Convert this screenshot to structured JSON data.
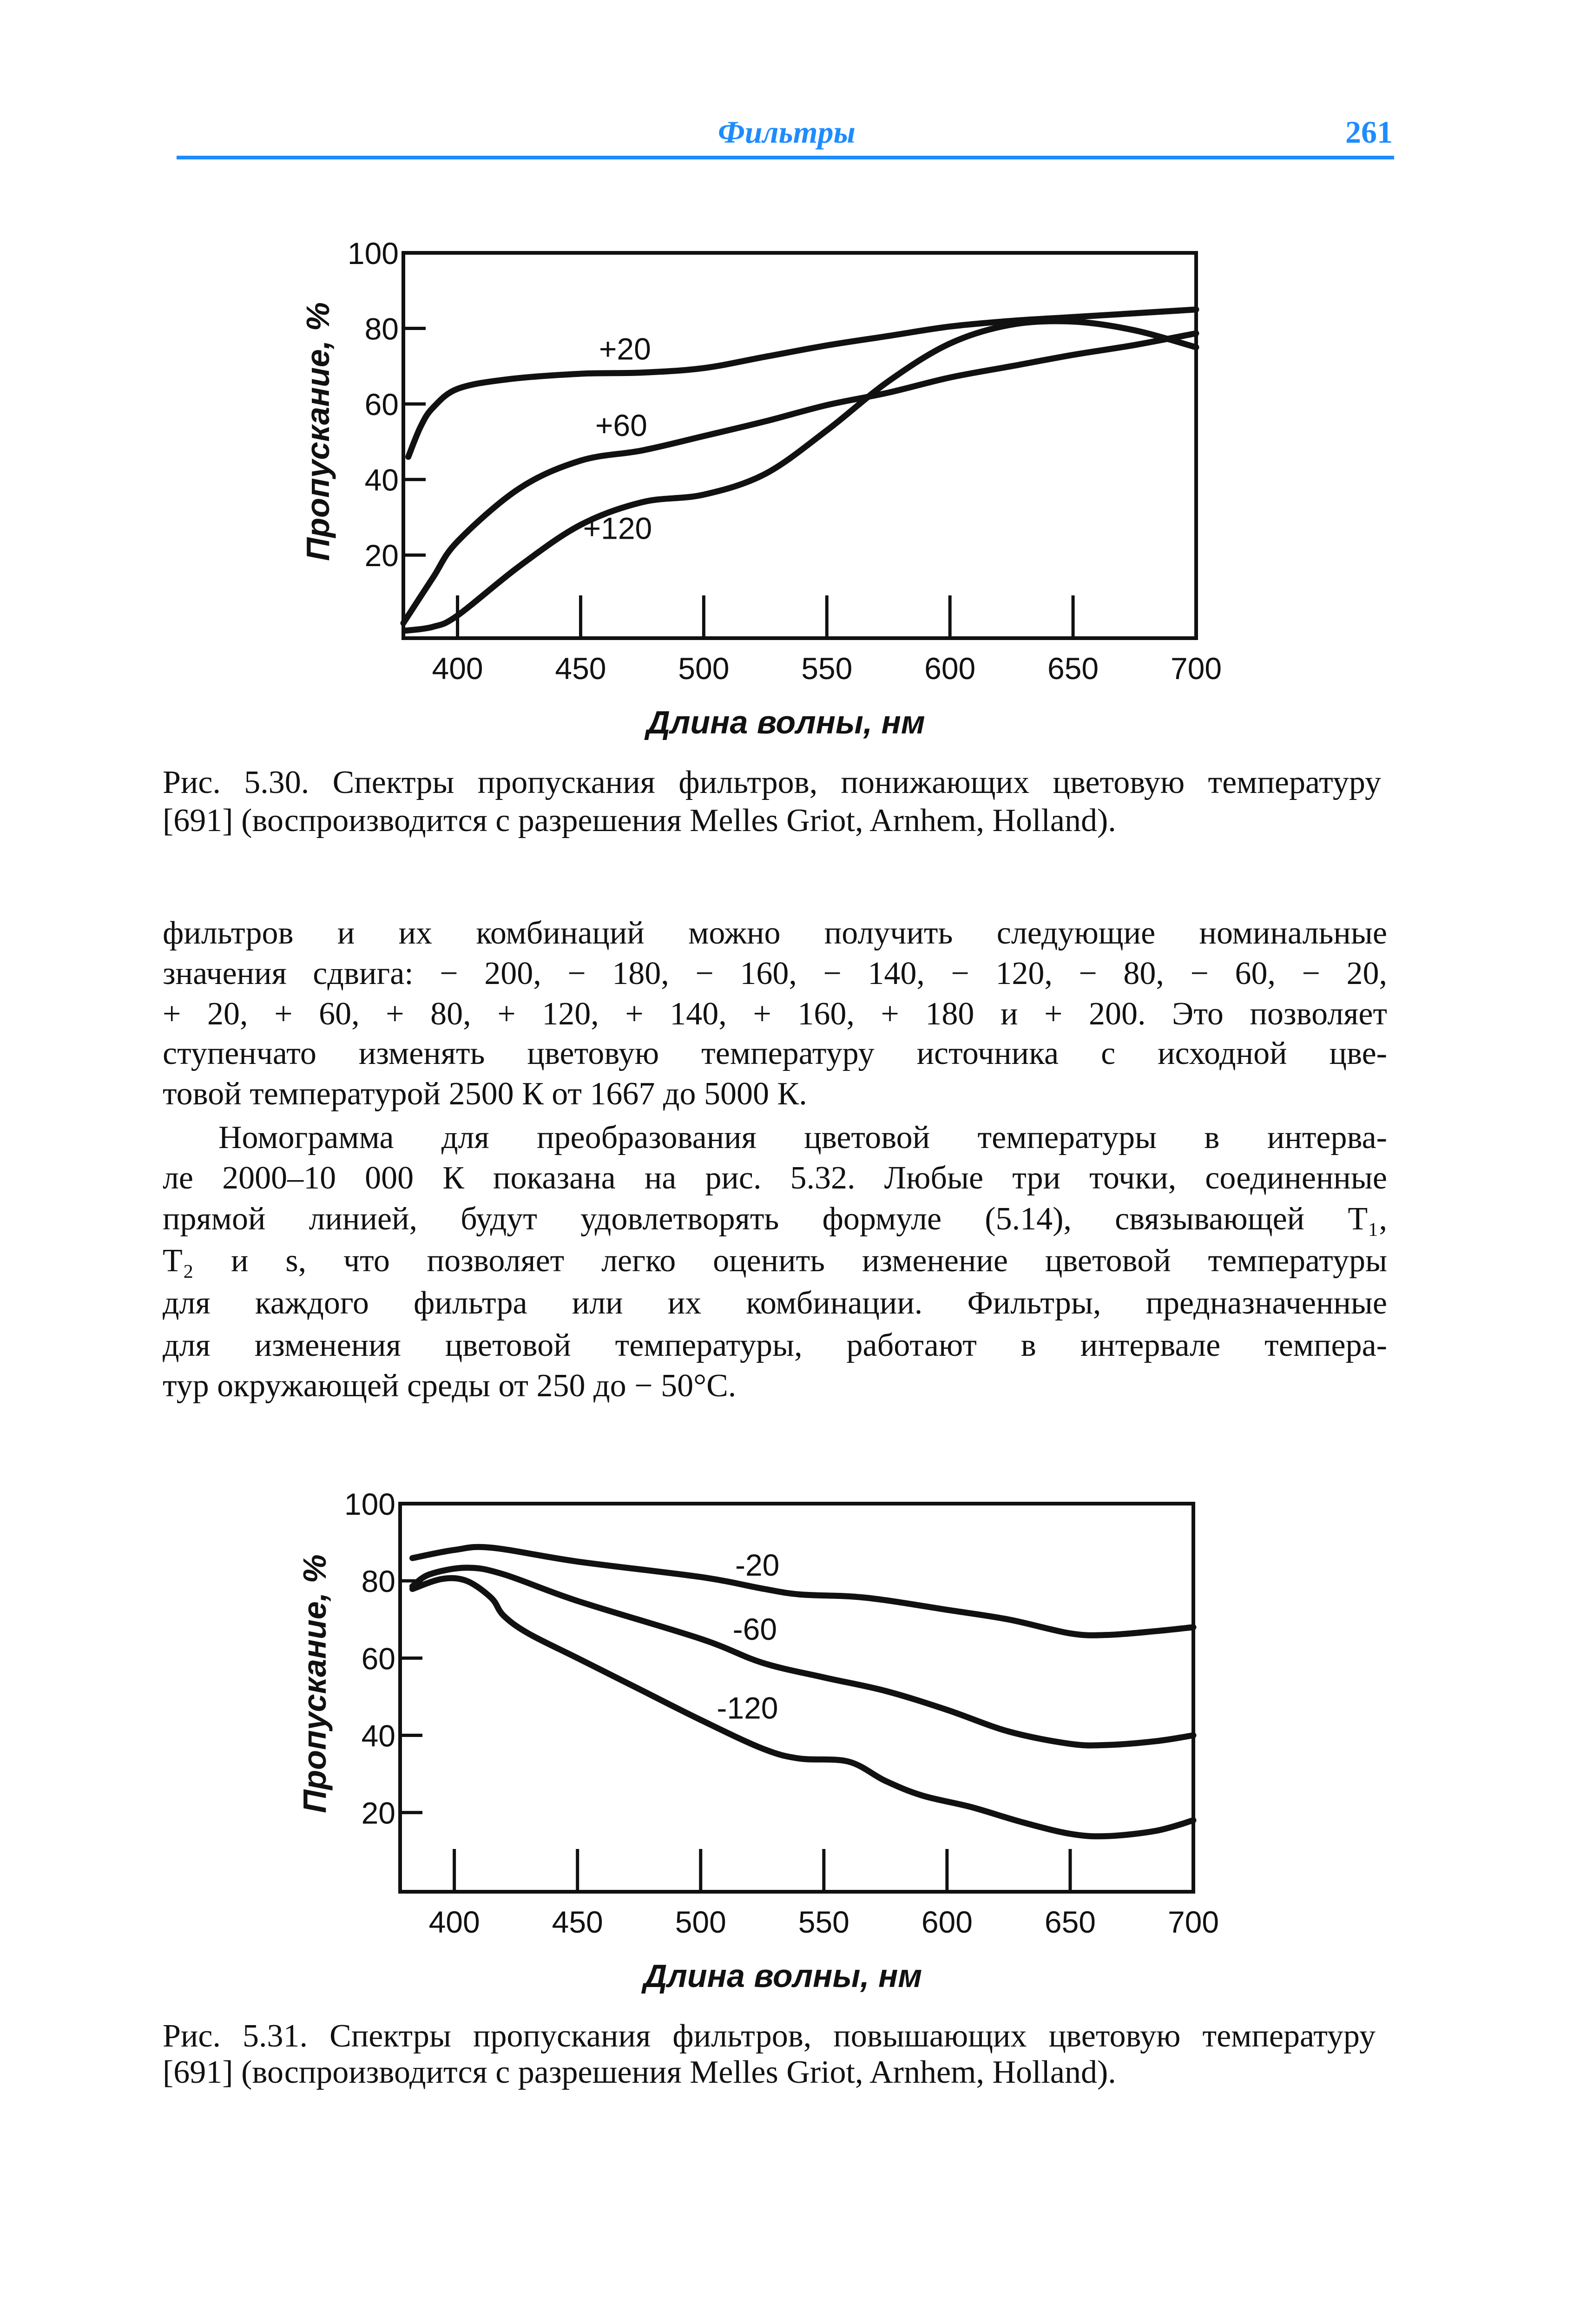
{
  "header": {
    "section_title": "Фильтры",
    "page_number": "261",
    "accent_color": "#1e8cff"
  },
  "figure1": {
    "caption_lines": [
      "Рис. 5.30. Спектры пропускания фильтров, понижающих цветовую температуру",
      "[691] (воспроизводится с разрешения Melles Griot, Arnhem, Holland)."
    ]
  },
  "body": {
    "paragraph1_lines": [
      "фильтров и их комбинаций можно получить следующие номинальные",
      "значения сдвига: − 200, − 180, − 160, − 140, − 120, − 80, − 60, − 20,",
      "+ 20, + 60, + 80, + 120, + 140, + 160, + 180 и + 200. Это позволяет",
      "ступенчато изменять цветовую температуру источника с исходной цве-",
      "товой температурой 2500 К от 1667 до 5000 К."
    ],
    "paragraph2_lines": [
      "Номограмма для преобразования цветовой температуры в интерва-",
      "ле 2000–10 000 К показана на рис. 5.32. Любые три точки, соединенные",
      "прямой линией, будут удовлетворять формуле (5.14), связывающей T₁,",
      "T₂ и s, что позволяет легко оценить изменение цветовой температуры",
      "для каждого фильтра или их комбинации. Фильтры, предназначенные",
      "для изменения цветовой температуры, работают в интервале темпера-",
      "тур окружающей среды от 250 до − 50°С."
    ]
  },
  "figure2": {
    "caption_lines": [
      "Рис. 5.31. Спектры пропускания фильтров, повышающих цветовую температуру",
      "[691] (воспроизводится с разрешения Melles Griot, Arnhem, Holland)."
    ]
  },
  "chart_data": [
    {
      "type": "line",
      "xlabel": "Длина волны, нм",
      "ylabel": "Пропускание, %",
      "xlim": [
        378,
        700
      ],
      "ylim": [
        -2,
        100
      ],
      "xticks": [
        "400",
        "450",
        "500",
        "550",
        "600",
        "650",
        "700"
      ],
      "yticks": [
        "100",
        "80",
        "60",
        "40",
        "20"
      ],
      "grid": false,
      "series": [
        {
          "name": "+20",
          "label_at": [
            468,
            74.5
          ],
          "x": [
            380,
            385,
            390,
            400,
            420,
            450,
            475,
            500,
            525,
            550,
            575,
            600,
            625,
            650,
            675,
            700
          ],
          "y": [
            46,
            54,
            59,
            64,
            66.5,
            68,
            68.3,
            69.5,
            72.5,
            75.5,
            78,
            80.5,
            82,
            83,
            84,
            85
          ]
        },
        {
          "name": "+60",
          "label_at": [
            466.5,
            54.2
          ],
          "x": [
            378,
            390,
            400,
            425,
            450,
            475,
            500,
            525,
            550,
            575,
            600,
            625,
            650,
            675,
            700
          ],
          "y": [
            2,
            14,
            23.6,
            37.6,
            45,
            47.7,
            51.5,
            55.4,
            59.7,
            63,
            67,
            70,
            73,
            75.6,
            78.7
          ]
        },
        {
          "name": "+120",
          "label_at": [
            465,
            27
          ],
          "x": [
            379,
            390,
            400,
            425,
            450,
            475,
            500,
            525,
            550,
            575,
            600,
            625,
            650,
            675,
            700
          ],
          "y": [
            0,
            1,
            4,
            17,
            28,
            34,
            36,
            41.5,
            53,
            66,
            76,
            81,
            81.8,
            79.5,
            75
          ]
        }
      ]
    },
    {
      "type": "line",
      "xlabel": "Длина волны, нм",
      "ylabel": "Пропускание, %",
      "xlim": [
        378,
        700
      ],
      "ylim": [
        -0.5,
        100
      ],
      "xticks": [
        "400",
        "450",
        "500",
        "550",
        "600",
        "650",
        "700"
      ],
      "yticks": [
        "100",
        "80",
        "60",
        "40",
        "20"
      ],
      "grid": false,
      "series": [
        {
          "name": "-20",
          "label_at": [
            523,
            84
          ],
          "x": [
            383,
            400,
            415,
            450,
            500,
            525,
            540,
            560,
            575,
            600,
            625,
            650,
            665,
            685,
            700
          ],
          "y": [
            85.9,
            88,
            88.6,
            85,
            81,
            78,
            76.5,
            76,
            75,
            72.5,
            70,
            66.4,
            66,
            67,
            68
          ]
        },
        {
          "name": "-60",
          "label_at": [
            522,
            67.4
          ],
          "x": [
            383,
            390,
            405,
            420,
            450,
            500,
            525,
            550,
            575,
            600,
            625,
            650,
            665,
            685,
            700
          ],
          "y": [
            78.6,
            81.7,
            83.4,
            81.7,
            74.8,
            65,
            58.8,
            55,
            51.5,
            46.6,
            41,
            37.8,
            37.5,
            38.5,
            40
          ]
        },
        {
          "name": "-120",
          "label_at": [
            519,
            47
          ],
          "x": [
            383,
            395,
            405,
            415,
            420,
            430,
            450,
            475,
            500,
            525,
            540,
            560,
            575,
            590,
            610,
            630,
            650,
            665,
            685,
            700
          ],
          "y": [
            77.9,
            80.5,
            80,
            75.6,
            71,
            66.4,
            60,
            52,
            44,
            36.6,
            34,
            33.2,
            28.2,
            24.4,
            21.4,
            17.6,
            14.5,
            13.9,
            15.3,
            18
          ]
        }
      ]
    }
  ]
}
